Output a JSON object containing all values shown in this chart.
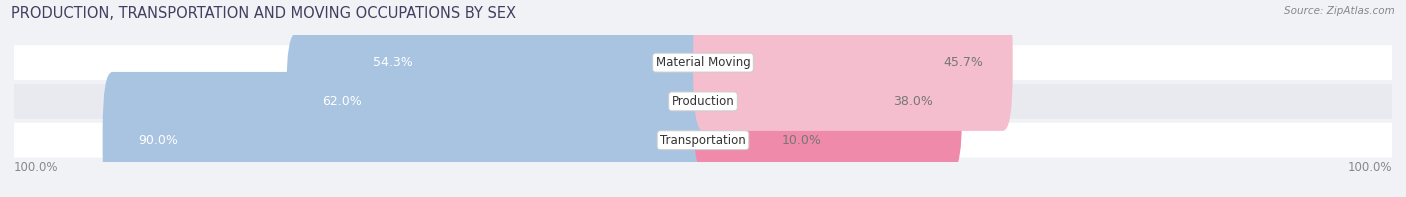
{
  "title": "PRODUCTION, TRANSPORTATION AND MOVING OCCUPATIONS BY SEX",
  "source": "Source: ZipAtlas.com",
  "categories": [
    "Transportation",
    "Production",
    "Material Moving"
  ],
  "male_pct": [
    90.0,
    62.0,
    54.3
  ],
  "female_pct": [
    10.0,
    38.0,
    45.7
  ],
  "male_color": "#a8c4e0",
  "female_color": "#f08aaa",
  "female_color_light": "#f4bece",
  "bg_color": "#f0f2f5",
  "row_bg_even": "#ffffff",
  "row_bg_odd": "#e8eaf0",
  "x_left_label": "100.0%",
  "x_right_label": "100.0%",
  "title_fontsize": 10.5,
  "source_fontsize": 7.5,
  "label_fontsize": 9,
  "cat_fontsize": 8.5,
  "legend_fontsize": 9,
  "bar_height": 0.52
}
